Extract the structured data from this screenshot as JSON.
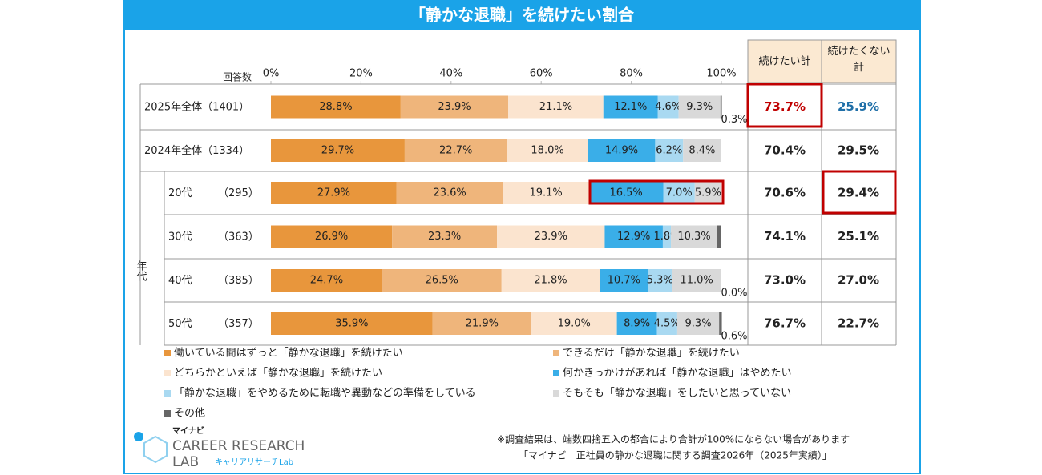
{
  "chart_data": {
    "type": "stacked-bar-100",
    "title": "「静かな退職」を続けたい割合",
    "count_header": "回答数",
    "group_label": "年代",
    "categories": [
      "2025年全体",
      "2024年全体",
      "20代",
      "30代",
      "40代",
      "50代"
    ],
    "counts": [
      "（1401）",
      "（1334）",
      "（295）",
      "（363）",
      "（385）",
      "（357）"
    ],
    "xlim": [
      0,
      100
    ],
    "xticks": [
      {
        "value": 0,
        "label": "0%"
      },
      {
        "value": 20,
        "label": "20%"
      },
      {
        "value": 40,
        "label": "40%"
      },
      {
        "value": 60,
        "label": "60%"
      },
      {
        "value": 80,
        "label": "80%"
      },
      {
        "value": 100,
        "label": "100%"
      }
    ],
    "series": [
      {
        "name": "働いている間はずっと「静かな退職」を続けたい",
        "color": "#e8963c",
        "values": [
          28.8,
          29.7,
          27.9,
          26.9,
          24.7,
          35.9
        ],
        "value_labels": [
          "28.8%",
          "29.7%",
          "27.9%",
          "26.9%",
          "24.7%",
          "35.9%"
        ]
      },
      {
        "name": "できるだけ「静かな退職」を続けたい",
        "color": "#efb57b",
        "values": [
          23.9,
          22.7,
          23.6,
          23.3,
          26.5,
          21.9
        ],
        "value_labels": [
          "23.9%",
          "22.7%",
          "23.6%",
          "23.3%",
          "26.5%",
          "21.9%"
        ]
      },
      {
        "name": "どちらかといえば「静かな退職」を続けたい",
        "color": "#fbe4cf",
        "values": [
          21.1,
          18.0,
          19.1,
          23.9,
          21.8,
          19.0
        ],
        "value_labels": [
          "21.1%",
          "18.0%",
          "19.1%",
          "23.9%",
          "21.8%",
          "19.0%"
        ]
      },
      {
        "name": "何かきっかけがあれば「静かな退職」はやめたい",
        "color": "#3aaee8",
        "values": [
          12.1,
          14.9,
          16.5,
          12.9,
          10.7,
          8.9
        ],
        "value_labels": [
          "12.1%",
          "14.9%",
          "16.5%",
          "12.9%",
          "10.7%",
          "8.9%"
        ]
      },
      {
        "name": "「静かな退職」をやめるために転職や異動などの準備をしている",
        "color": "#a9d9f1",
        "values": [
          4.6,
          6.2,
          7.0,
          1.8,
          5.3,
          4.5
        ],
        "value_labels": [
          "4.6%",
          "6.2%",
          "7.0%",
          "1.8%",
          "5.3%",
          "4.5%"
        ]
      },
      {
        "name": "そもそも「静かな退職」をしたいと思っていない",
        "color": "#d9d9d9",
        "values": [
          9.3,
          8.4,
          5.9,
          10.3,
          11.0,
          9.3
        ],
        "value_labels": [
          "9.3%",
          "8.4%",
          "5.9%",
          "10.3%",
          "11.0%",
          "9.3%"
        ]
      },
      {
        "name": "その他",
        "color": "#666666",
        "values": [
          0.3,
          0.1,
          0.0,
          0.9,
          0.0,
          0.6
        ],
        "value_labels": [
          "0.3%",
          null,
          null,
          null,
          "0.0%",
          "0.6%"
        ]
      }
    ],
    "totals": [
      {
        "name": "続けたい計",
        "values": [
          73.7,
          70.4,
          70.6,
          74.1,
          73.0,
          76.7
        ],
        "value_labels": [
          "73.7%",
          "70.4%",
          "70.6%",
          "74.1%",
          "73.0%",
          "76.7%"
        ],
        "first_color": "#c00000"
      },
      {
        "name": "続けたくない計",
        "values": [
          25.9,
          29.5,
          29.4,
          25.1,
          27.0,
          22.7
        ],
        "value_labels": [
          "25.9%",
          "29.5%",
          "29.4%",
          "25.1%",
          "27.0%",
          "22.7%"
        ],
        "first_color": "#1f6fa8"
      }
    ],
    "footnote": "※調査結果は、端数四捨五入の都合により合計が100%にならない場合があります",
    "source": "「マイナビ　正社員の静かな退職に関する調査2026年（2025年実績）」",
    "logo": {
      "brand": "マイナビ",
      "line1": "CAREER RESEARCH",
      "line2": "LAB",
      "sub": "キャリアリサーチLab"
    }
  }
}
